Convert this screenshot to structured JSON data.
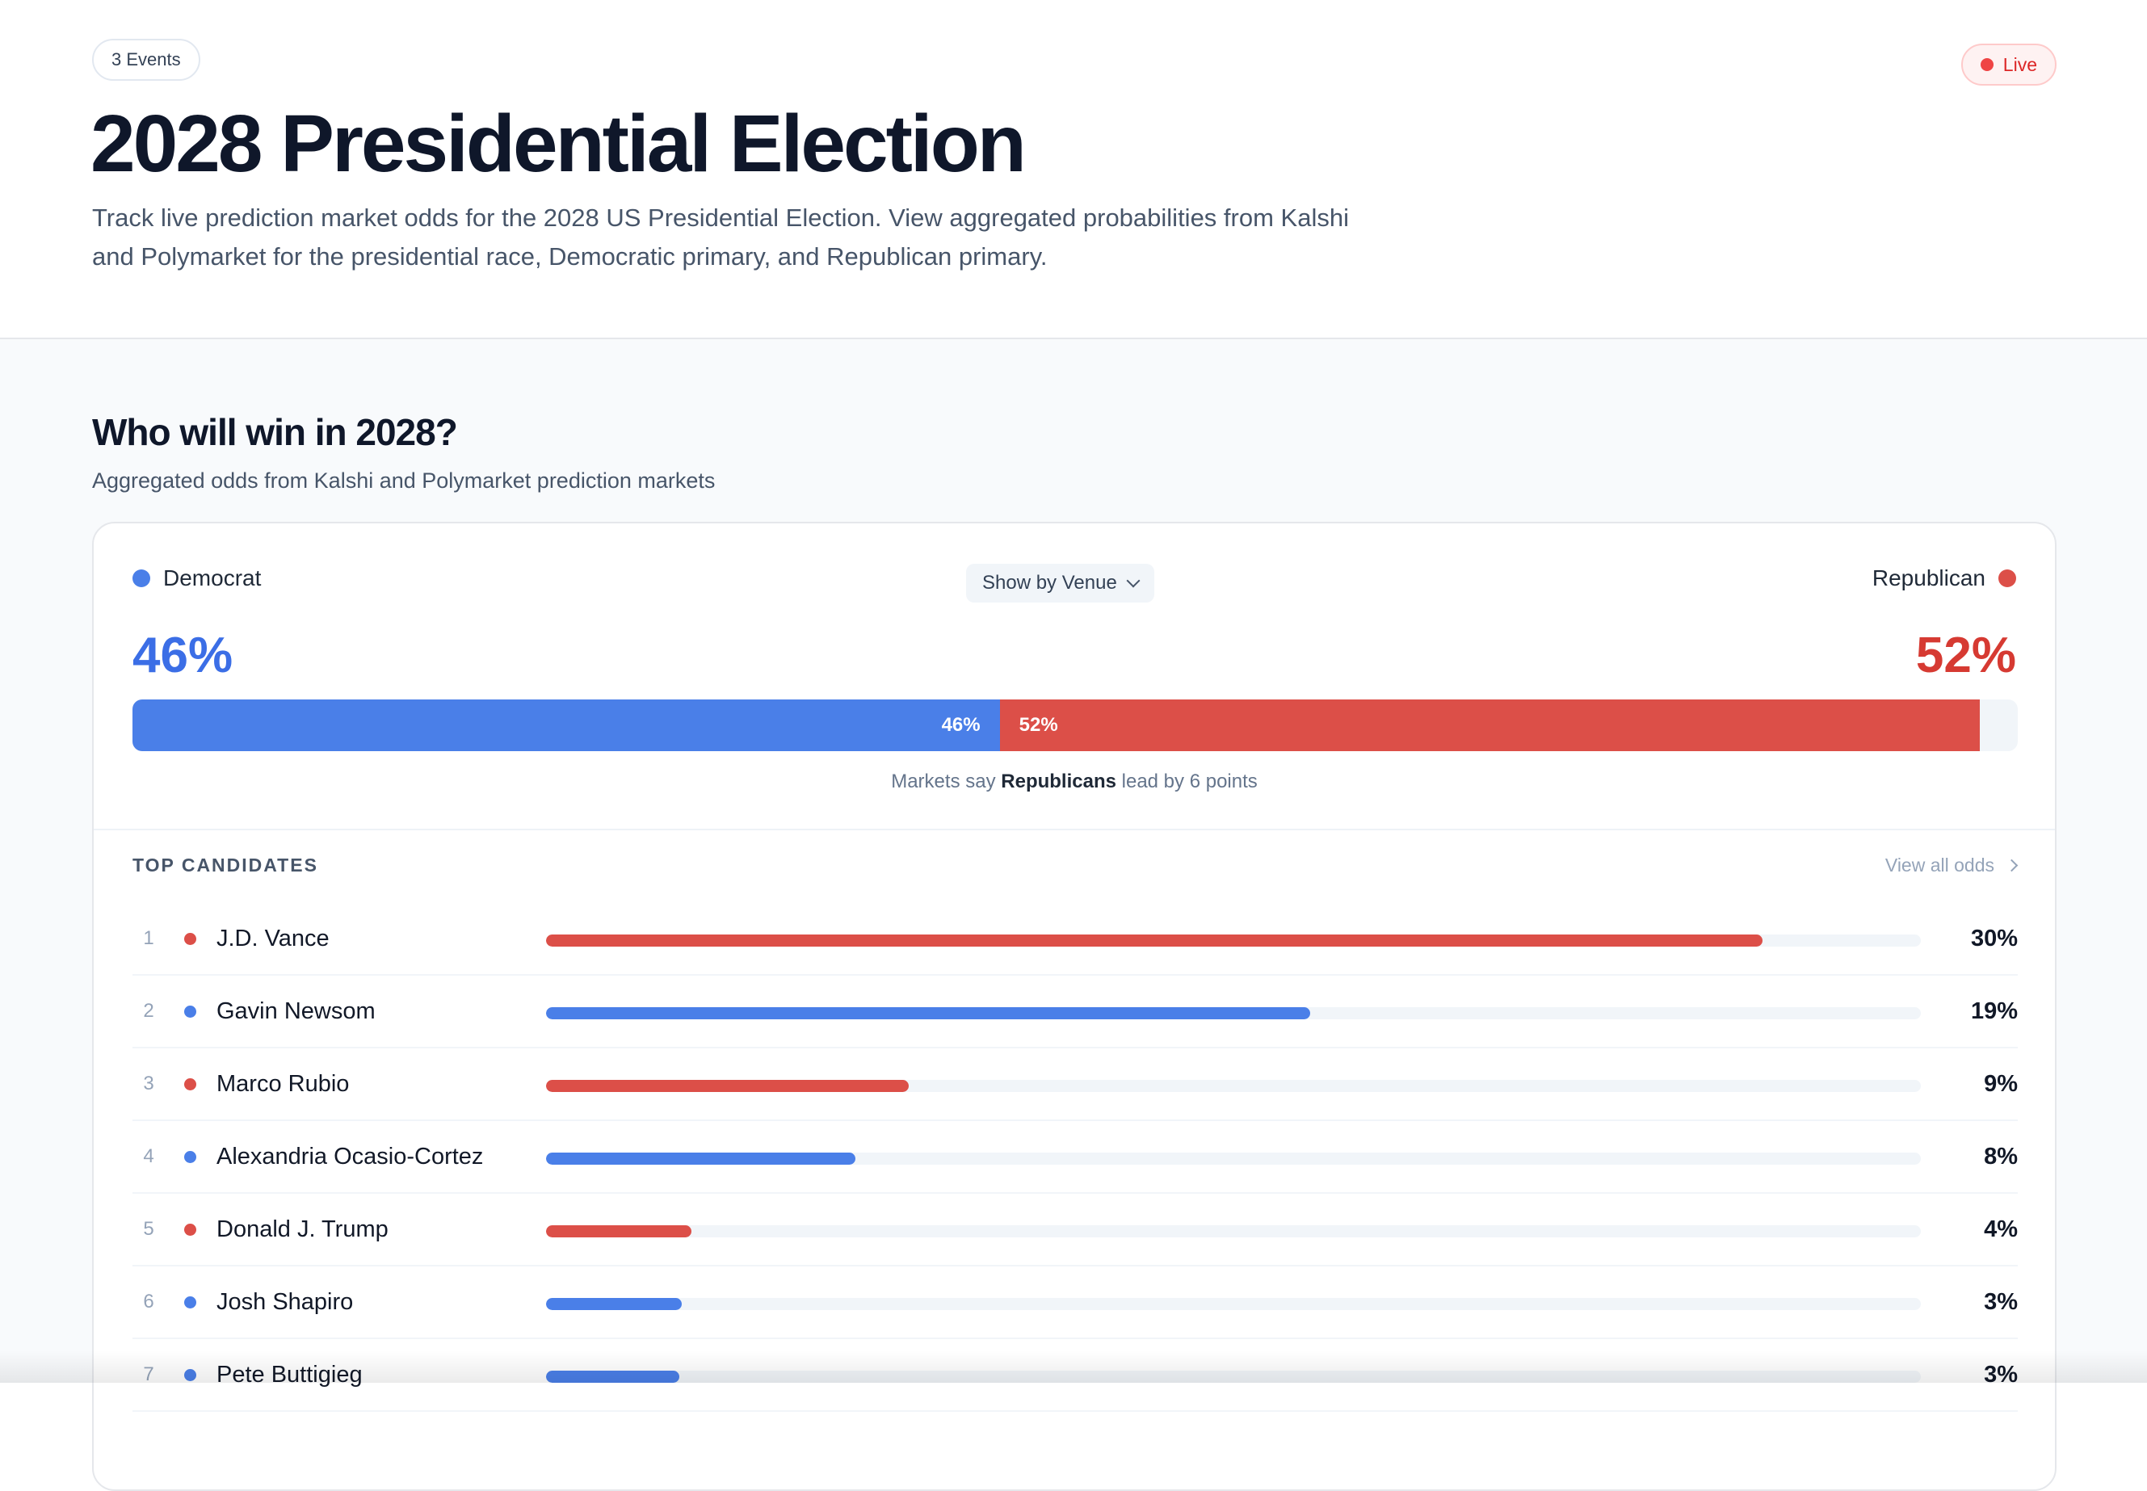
{
  "header": {
    "events_badge": "3 Events",
    "live_label": "Live",
    "title": "2028 Presidential Election",
    "description": "Track live prediction market odds for the 2028 US Presidential Election. View aggregated probabilities from Kalshi and Polymarket for the presidential race, Democratic primary, and Republican primary."
  },
  "section": {
    "title": "Who will win in 2028?",
    "subtitle": "Aggregated odds from Kalshi and Polymarket prediction markets"
  },
  "colors": {
    "democrat": "#4a7fe8",
    "republican": "#dc4f48",
    "live": "#ef4444"
  },
  "party_odds": {
    "democrat_label": "Democrat",
    "republican_label": "Republican",
    "venue_button": "Show by Venue",
    "democrat_pct": "46%",
    "republican_pct": "52%",
    "democrat_value": 46,
    "republican_value": 52,
    "lead_prefix": "Markets say",
    "lead_party": "Republicans",
    "lead_suffix": "lead by 6 points"
  },
  "top_candidates": {
    "title": "TOP CANDIDATES",
    "view_all": "View all odds",
    "rows": [
      {
        "rank": "1",
        "name": "J.D. Vance",
        "party": "republican",
        "pct_label": "30%",
        "fill_pct": 88.5
      },
      {
        "rank": "2",
        "name": "Gavin Newsom",
        "party": "democrat",
        "pct_label": "19%",
        "fill_pct": 55.6
      },
      {
        "rank": "3",
        "name": "Marco Rubio",
        "party": "republican",
        "pct_label": "9%",
        "fill_pct": 26.4
      },
      {
        "rank": "4",
        "name": "Alexandria Ocasio-Cortez",
        "party": "democrat",
        "pct_label": "8%",
        "fill_pct": 22.5
      },
      {
        "rank": "5",
        "name": "Donald J. Trump",
        "party": "republican",
        "pct_label": "4%",
        "fill_pct": 10.6
      },
      {
        "rank": "6",
        "name": "Josh Shapiro",
        "party": "democrat",
        "pct_label": "3%",
        "fill_pct": 9.9
      },
      {
        "rank": "7",
        "name": "Pete Buttigieg",
        "party": "democrat",
        "pct_label": "3%",
        "fill_pct": 9.7
      }
    ]
  }
}
